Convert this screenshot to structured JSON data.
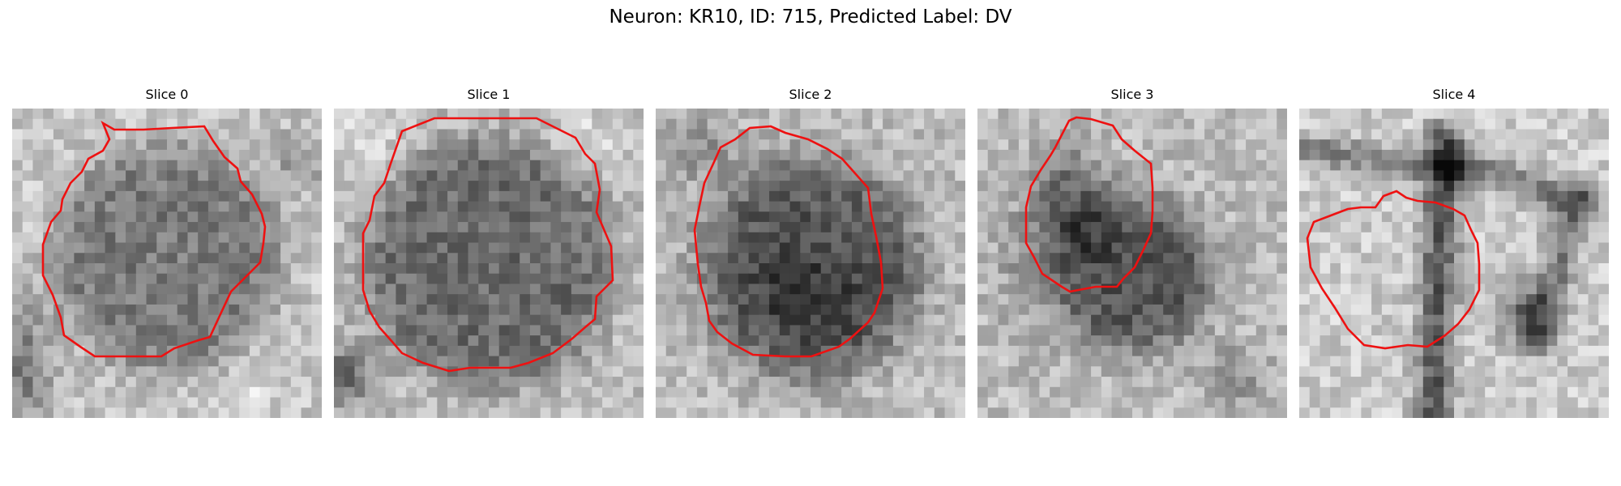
{
  "figure": {
    "title": "Neuron: KR10, ID: 715, Predicted Label: DV"
  },
  "panels": [
    {
      "title": "Slice 0"
    },
    {
      "title": "Slice 1"
    },
    {
      "title": "Slice 2"
    },
    {
      "title": "Slice 3"
    },
    {
      "title": "Slice 4"
    }
  ],
  "contour_color": "#ee1111"
}
